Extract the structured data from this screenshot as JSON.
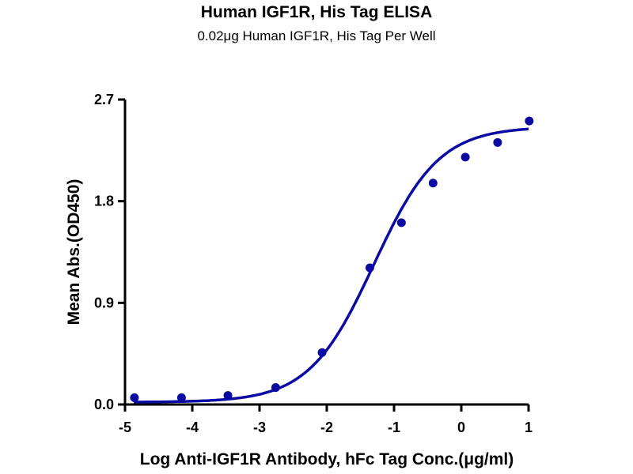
{
  "chart_data": {
    "type": "scatter",
    "title": "Human IGF1R, His Tag ELISA",
    "subtitle": "0.02μg Human IGF1R, His Tag Per Well",
    "xlabel": "Log Anti-IGF1R Antibody, hFc Tag Conc.(μg/ml)",
    "ylabel": "Mean Abs.(OD450)",
    "xlim": [
      -5,
      1
    ],
    "ylim": [
      0,
      2.7
    ],
    "x_ticks": [
      "-5",
      "-4",
      "-3",
      "-2",
      "-1",
      "0",
      "1"
    ],
    "y_ticks": [
      "0.0",
      "0.9",
      "1.8",
      "2.7"
    ],
    "grid": false,
    "color": "#0b0ba3",
    "series": [
      {
        "x": [
          -4.86,
          -4.16,
          -3.47,
          -2.76,
          -2.07,
          -1.36,
          -0.89,
          -0.42,
          0.06,
          0.54,
          1.01
        ],
        "y": [
          0.06,
          0.06,
          0.08,
          0.15,
          0.46,
          1.21,
          1.61,
          1.96,
          2.19,
          2.32,
          2.51
        ]
      }
    ],
    "fit_curve": {
      "model": "4PL",
      "bottom": 0.02,
      "top": 2.46,
      "log_ec50": -1.3,
      "hill": 0.9
    }
  }
}
